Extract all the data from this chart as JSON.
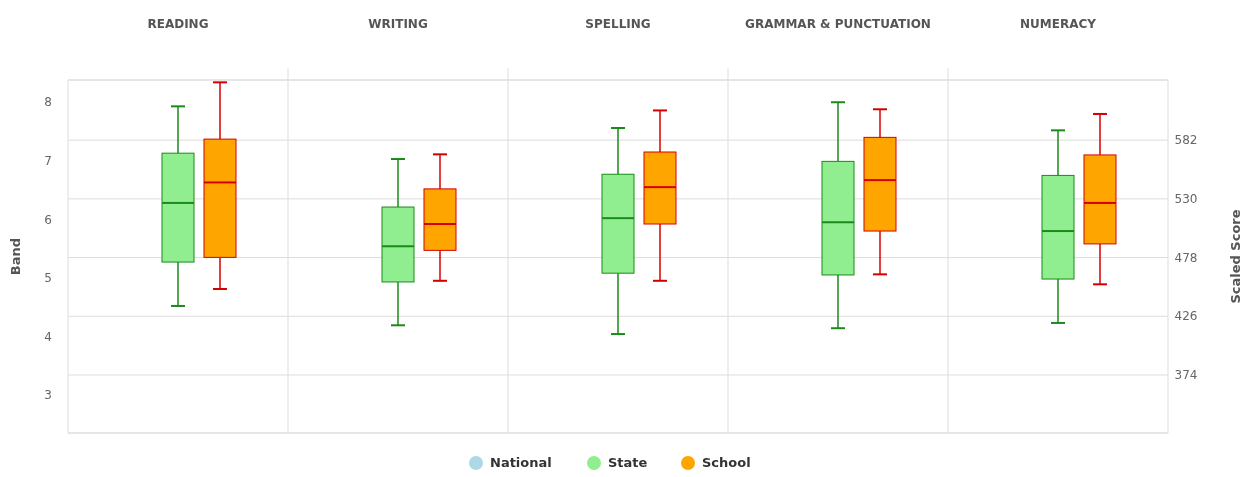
{
  "chart_data": {
    "type": "box",
    "categories": [
      "READING",
      "WRITING",
      "SPELLING",
      "GRAMMAR & PUNCTUATION",
      "NUMERACY"
    ],
    "ylabel": "Band",
    "y2label": "Scaled Score",
    "ylim": [
      2.35,
      8.38
    ],
    "yticks": [
      3,
      4,
      5,
      6,
      7,
      8
    ],
    "y2lim": [
      322.6,
      635.3
    ],
    "y2ticks": [
      374,
      426,
      478,
      530,
      582
    ],
    "grid": true,
    "legend": "bottom",
    "series": [
      {
        "name": "National",
        "color": "#add8e6",
        "boxes": [
          null,
          null,
          null,
          null,
          null
        ]
      },
      {
        "name": "State",
        "color": "#90ee90",
        "boxes": [
          {
            "low": 4.52,
            "q1": 5.27,
            "median": 6.28,
            "q3": 7.13,
            "high": 7.93
          },
          {
            "low": 4.19,
            "q1": 4.93,
            "median": 5.54,
            "q3": 6.21,
            "high": 7.03
          },
          {
            "low": 4.04,
            "q1": 5.08,
            "median": 6.02,
            "q3": 6.77,
            "high": 7.56
          },
          {
            "low": 4.14,
            "q1": 5.05,
            "median": 5.95,
            "q3": 6.99,
            "high": 8.0
          },
          {
            "low": 4.23,
            "q1": 4.98,
            "median": 5.8,
            "q3": 6.75,
            "high": 7.52
          }
        ]
      },
      {
        "name": "School",
        "color": "#ffa500",
        "boxes": [
          {
            "low": 4.81,
            "q1": 5.35,
            "median": 6.63,
            "q3": 7.37,
            "high": 8.34
          },
          {
            "low": 4.95,
            "q1": 5.47,
            "median": 5.92,
            "q3": 6.52,
            "high": 7.11
          },
          {
            "low": 4.95,
            "q1": 5.92,
            "median": 6.55,
            "q3": 7.15,
            "high": 7.86
          },
          {
            "low": 5.06,
            "q1": 5.8,
            "median": 6.67,
            "q3": 7.4,
            "high": 7.88
          },
          {
            "low": 4.89,
            "q1": 5.58,
            "median": 6.28,
            "q3": 7.1,
            "high": 7.8
          }
        ]
      }
    ]
  }
}
